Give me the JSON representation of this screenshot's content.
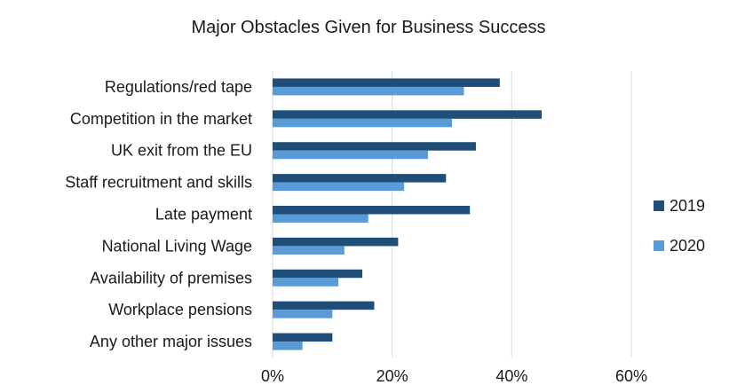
{
  "chart_data": {
    "type": "bar",
    "orientation": "horizontal",
    "title": "Major Obstacles Given for Business Success",
    "categories": [
      "Regulations/red tape",
      "Competition in the market",
      "UK exit from the EU",
      "Staff recruitment and skills",
      "Late payment",
      "National Living Wage",
      "Availability of premises",
      "Workplace pensions",
      "Any other major issues"
    ],
    "series": [
      {
        "name": "2019",
        "color": "#1f4e79",
        "values": [
          38,
          45,
          34,
          29,
          33,
          21,
          15,
          17,
          10
        ]
      },
      {
        "name": "2020",
        "color": "#5b9bd5",
        "values": [
          32,
          30,
          26,
          22,
          16,
          12,
          11,
          10,
          5
        ]
      }
    ],
    "xlim": [
      0,
      60
    ],
    "xticks": [
      0,
      20,
      40,
      60
    ],
    "xtick_labels": [
      "0%",
      "20%",
      "40%",
      "60%"
    ],
    "grid": true,
    "legend_position": "right"
  }
}
